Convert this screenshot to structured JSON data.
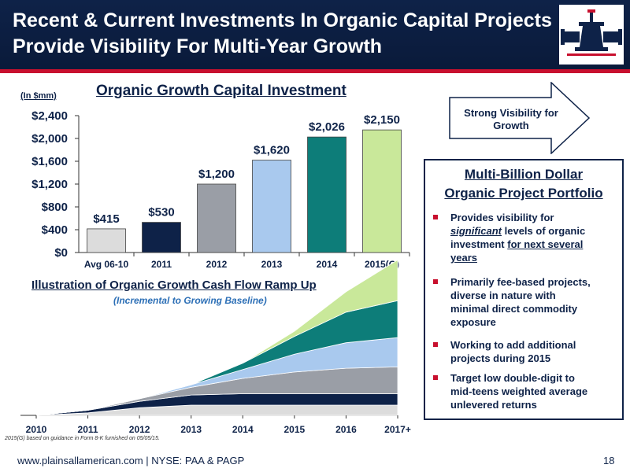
{
  "header": {
    "title_line1": "Recent & Current Investments In Organic Capital Projects",
    "title_line2": "Provide Visibility For Multi-Year Growth",
    "logo_icon": "valve-logo-icon"
  },
  "colors": {
    "navy": "#0e2248",
    "red": "#c8102e",
    "accent_blue": "#2c6fb6"
  },
  "chart_data": [
    {
      "type": "bar",
      "title": "Organic Growth Capital Investment",
      "ylabel": "(In $mm)",
      "categories": [
        "Avg 06-10",
        "2011",
        "2012",
        "2013",
        "2014",
        "2015(G)"
      ],
      "values": [
        415,
        530,
        1200,
        1620,
        2026,
        2150
      ],
      "value_labels": [
        "$415",
        "$530",
        "$1,200",
        "$1,620",
        "$2,026",
        "$2,150"
      ],
      "bar_colors": [
        "#dcdcdc",
        "#0e2248",
        "#9a9ea6",
        "#a9c9ee",
        "#0d7d79",
        "#c9e89a"
      ],
      "ylim": [
        0,
        2400
      ],
      "yticks": [
        0,
        400,
        800,
        1200,
        1600,
        2000,
        2400
      ],
      "ytick_labels": [
        "$0",
        "$400",
        "$800",
        "$1,200",
        "$1,600",
        "$2,000",
        "$2,400"
      ]
    },
    {
      "type": "area",
      "title": "Illustration of Organic Growth Cash Flow Ramp Up",
      "subtitle": "(Incremental to Growing Baseline)",
      "x": [
        "2010",
        "2011",
        "2012",
        "2013",
        "2014",
        "2015",
        "2016",
        "2017+"
      ],
      "stacked": true,
      "series_colors": [
        "#dcdcdc",
        "#0e2248",
        "#9a9ea6",
        "#a9c9ee",
        "#0d7d79",
        "#c9e89a"
      ],
      "series": [
        {
          "values": [
            0,
            0.02,
            0.06,
            0.08,
            0.08,
            0.08,
            0.08,
            0.08
          ]
        },
        {
          "values": [
            0,
            0.02,
            0.05,
            0.08,
            0.09,
            0.09,
            0.09,
            0.09
          ]
        },
        {
          "values": [
            0,
            0,
            0.02,
            0.06,
            0.12,
            0.17,
            0.2,
            0.21
          ]
        },
        {
          "values": [
            0,
            0,
            0,
            0.02,
            0.07,
            0.14,
            0.2,
            0.23
          ]
        },
        {
          "values": [
            0,
            0,
            0,
            0,
            0.05,
            0.14,
            0.24,
            0.29
          ]
        },
        {
          "values": [
            0,
            0,
            0,
            0,
            0,
            0.04,
            0.16,
            0.32
          ]
        }
      ]
    }
  ],
  "chart_labels": {
    "ylabel_unit": "(In $mm)",
    "cf_subtitle": "(Incremental to Growing Baseline)"
  },
  "callout": {
    "line1": "Strong Visibility for",
    "line2": "Growth"
  },
  "portfolio": {
    "heading_line1": "Multi-Billion Dollar",
    "heading_line2": "Organic Project Portfolio",
    "b1_a": "Provides visibility for",
    "b1_b": "significant",
    "b1_c": " levels of organic",
    "b1_d": "investment ",
    "b1_e": "for next several",
    "b1_f": "years",
    "b2": [
      "Primarily fee-based projects,",
      "diverse in nature with",
      "minimal direct commodity",
      "exposure"
    ],
    "b3": [
      "Working to add additional",
      "projects during 2015"
    ],
    "b4": [
      "Target low double-digit to",
      "mid-teens weighted average",
      "unlevered returns"
    ]
  },
  "footnote": "2015(G) based on guidance in Form 8-K furnished on 05/05/15.",
  "footer": {
    "url": "www.plainsallamerican.com",
    "ticker": "NYSE: PAA & PAGP",
    "page_number": "18"
  }
}
